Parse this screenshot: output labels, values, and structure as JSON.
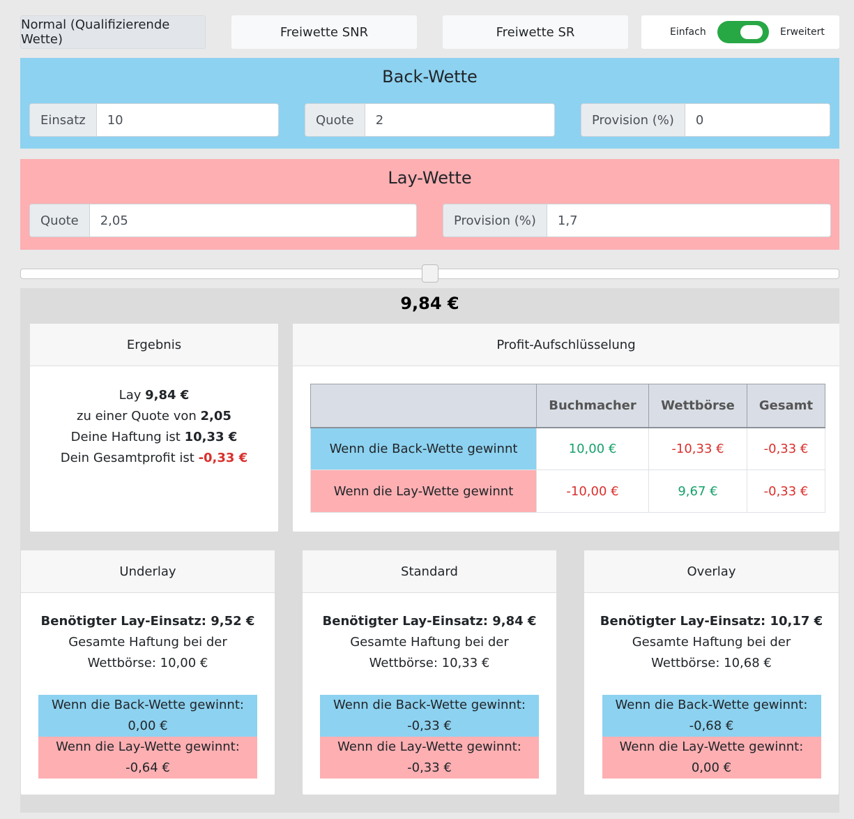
{
  "tabs": [
    {
      "label": "Normal (Qualifizierende Wette)",
      "active": true
    },
    {
      "label": "Freiwette SNR",
      "active": false
    },
    {
      "label": "Freiwette SR",
      "active": false
    }
  ],
  "mode_toggle": {
    "left_label": "Einfach",
    "right_label": "Erweitert",
    "state": "on",
    "color": "#28a745"
  },
  "back": {
    "title": "Back-Wette",
    "color": "#8dd2f0",
    "stake_label": "Einsatz",
    "stake_value": "10",
    "odds_label": "Quote",
    "odds_value": "2",
    "commission_label": "Provision (%)",
    "commission_value": "0"
  },
  "lay": {
    "title": "Lay-Wette",
    "color": "#fdafb2",
    "odds_label": "Quote",
    "odds_value": "2,05",
    "commission_label": "Provision (%)",
    "commission_value": "1,7"
  },
  "slider": {
    "position": 0.5
  },
  "result": {
    "amount": "9,84 €",
    "ergebnis": {
      "title": "Ergebnis",
      "line1_prefix": "Lay ",
      "line1_value": "9,84 €",
      "line2_prefix": "zu einer Quote von ",
      "line2_value": "2,05",
      "line3_prefix": "Deine Haftung ist ",
      "line3_value": "10,33 €",
      "line4_prefix": "Dein Gesamtprofit ist ",
      "line4_value": "-0,33 €"
    },
    "breakdown": {
      "title": "Profit-Aufschlüsselung",
      "columns": [
        "",
        "Buchmacher",
        "Wettbörse",
        "Gesamt"
      ],
      "rows": [
        {
          "label": "Wenn die Back-Wette gewinnt",
          "buchmacher": "10,00 €",
          "wettboerse": "-10,33 €",
          "gesamt": "-0,33 €"
        },
        {
          "label": "Wenn die Lay-Wette gewinnt",
          "buchmacher": "-10,00 €",
          "wettboerse": "9,67 €",
          "gesamt": "-0,33 €"
        }
      ]
    }
  },
  "strategies": [
    {
      "title": "Underlay",
      "stake_text": "Benötigter Lay-Einsatz: 9,52 €",
      "liability_line1": "Gesamte Haftung bei der",
      "liability_line2": "Wettbörse: 10,00 €",
      "back_label": "Wenn die Back-Wette gewinnt:",
      "back_value": "0,00 €",
      "lay_label": "Wenn die Lay-Wette gewinnt:",
      "lay_value": "-0,64 €"
    },
    {
      "title": "Standard",
      "stake_text": "Benötigter Lay-Einsatz: 9,84 €",
      "liability_line1": "Gesamte Haftung bei der",
      "liability_line2": "Wettbörse: 10,33 €",
      "back_label": "Wenn die Back-Wette gewinnt:",
      "back_value": "-0,33 €",
      "lay_label": "Wenn die Lay-Wette gewinnt:",
      "lay_value": "-0,33 €"
    },
    {
      "title": "Overlay",
      "stake_text": "Benötigter Lay-Einsatz: 10,17 €",
      "liability_line1": "Gesamte Haftung bei der",
      "liability_line2": "Wettbörse: 10,68 €",
      "back_label": "Wenn die Back-Wette gewinnt:",
      "back_value": "-0,68 €",
      "lay_label": "Wenn die Lay-Wette gewinnt:",
      "lay_value": "0,00 €"
    }
  ]
}
